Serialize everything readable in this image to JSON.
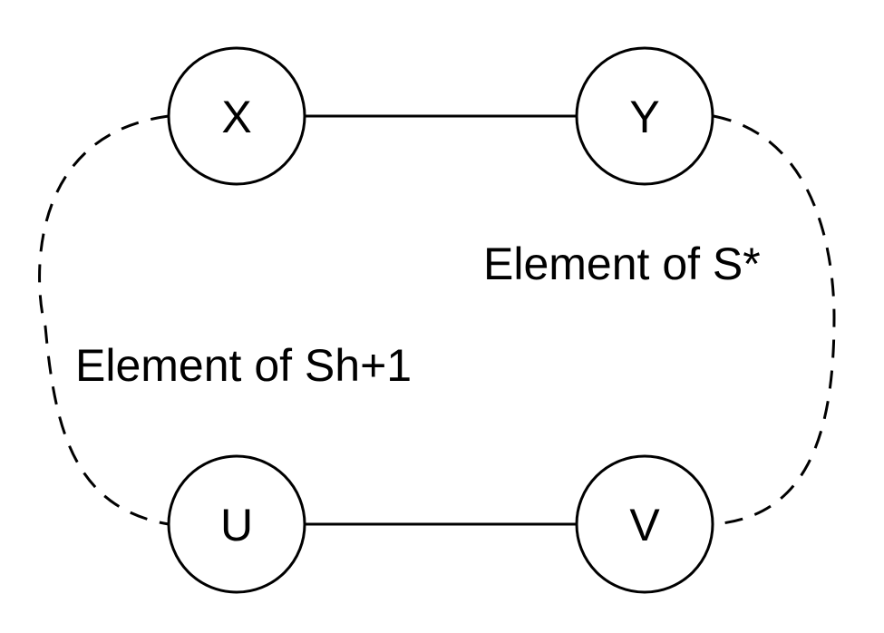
{
  "nodes": {
    "x": "X",
    "y": "Y",
    "u": "U",
    "v": "V"
  },
  "annotations": {
    "left": "Element of Sh+1",
    "right": "Element of S*"
  },
  "colors": {
    "stroke": "#000000",
    "background": "#ffffff"
  }
}
